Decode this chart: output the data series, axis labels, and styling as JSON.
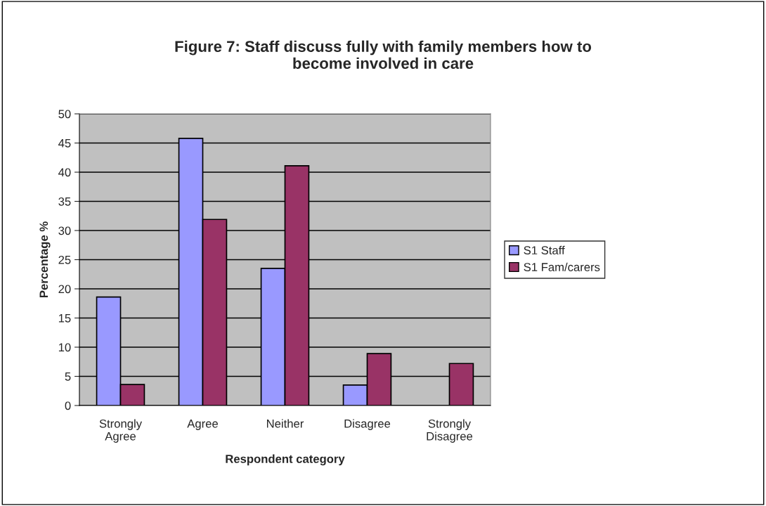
{
  "chart_data": {
    "type": "bar",
    "title": "Figure 7: Staff discuss fully with family members how to\nbecome involved in care",
    "xlabel": "Respondent category",
    "ylabel": "Percentage %",
    "categories": [
      "Strongly\nAgree",
      "Agree",
      "Neither",
      "Disagree",
      "Strongly\nDisagree"
    ],
    "series": [
      {
        "name": "S1 Staff",
        "color": "#9999ff",
        "values": [
          18.6,
          45.8,
          23.5,
          3.5,
          null
        ]
      },
      {
        "name": "S1 Fam/carers",
        "color": "#993366",
        "values": [
          3.6,
          31.9,
          41.1,
          8.9,
          7.2
        ]
      }
    ],
    "ylim": [
      0,
      50
    ],
    "yticks": [
      0,
      5,
      10,
      15,
      20,
      25,
      30,
      35,
      40,
      45,
      50
    ],
    "grid": "y",
    "legend": "right"
  }
}
